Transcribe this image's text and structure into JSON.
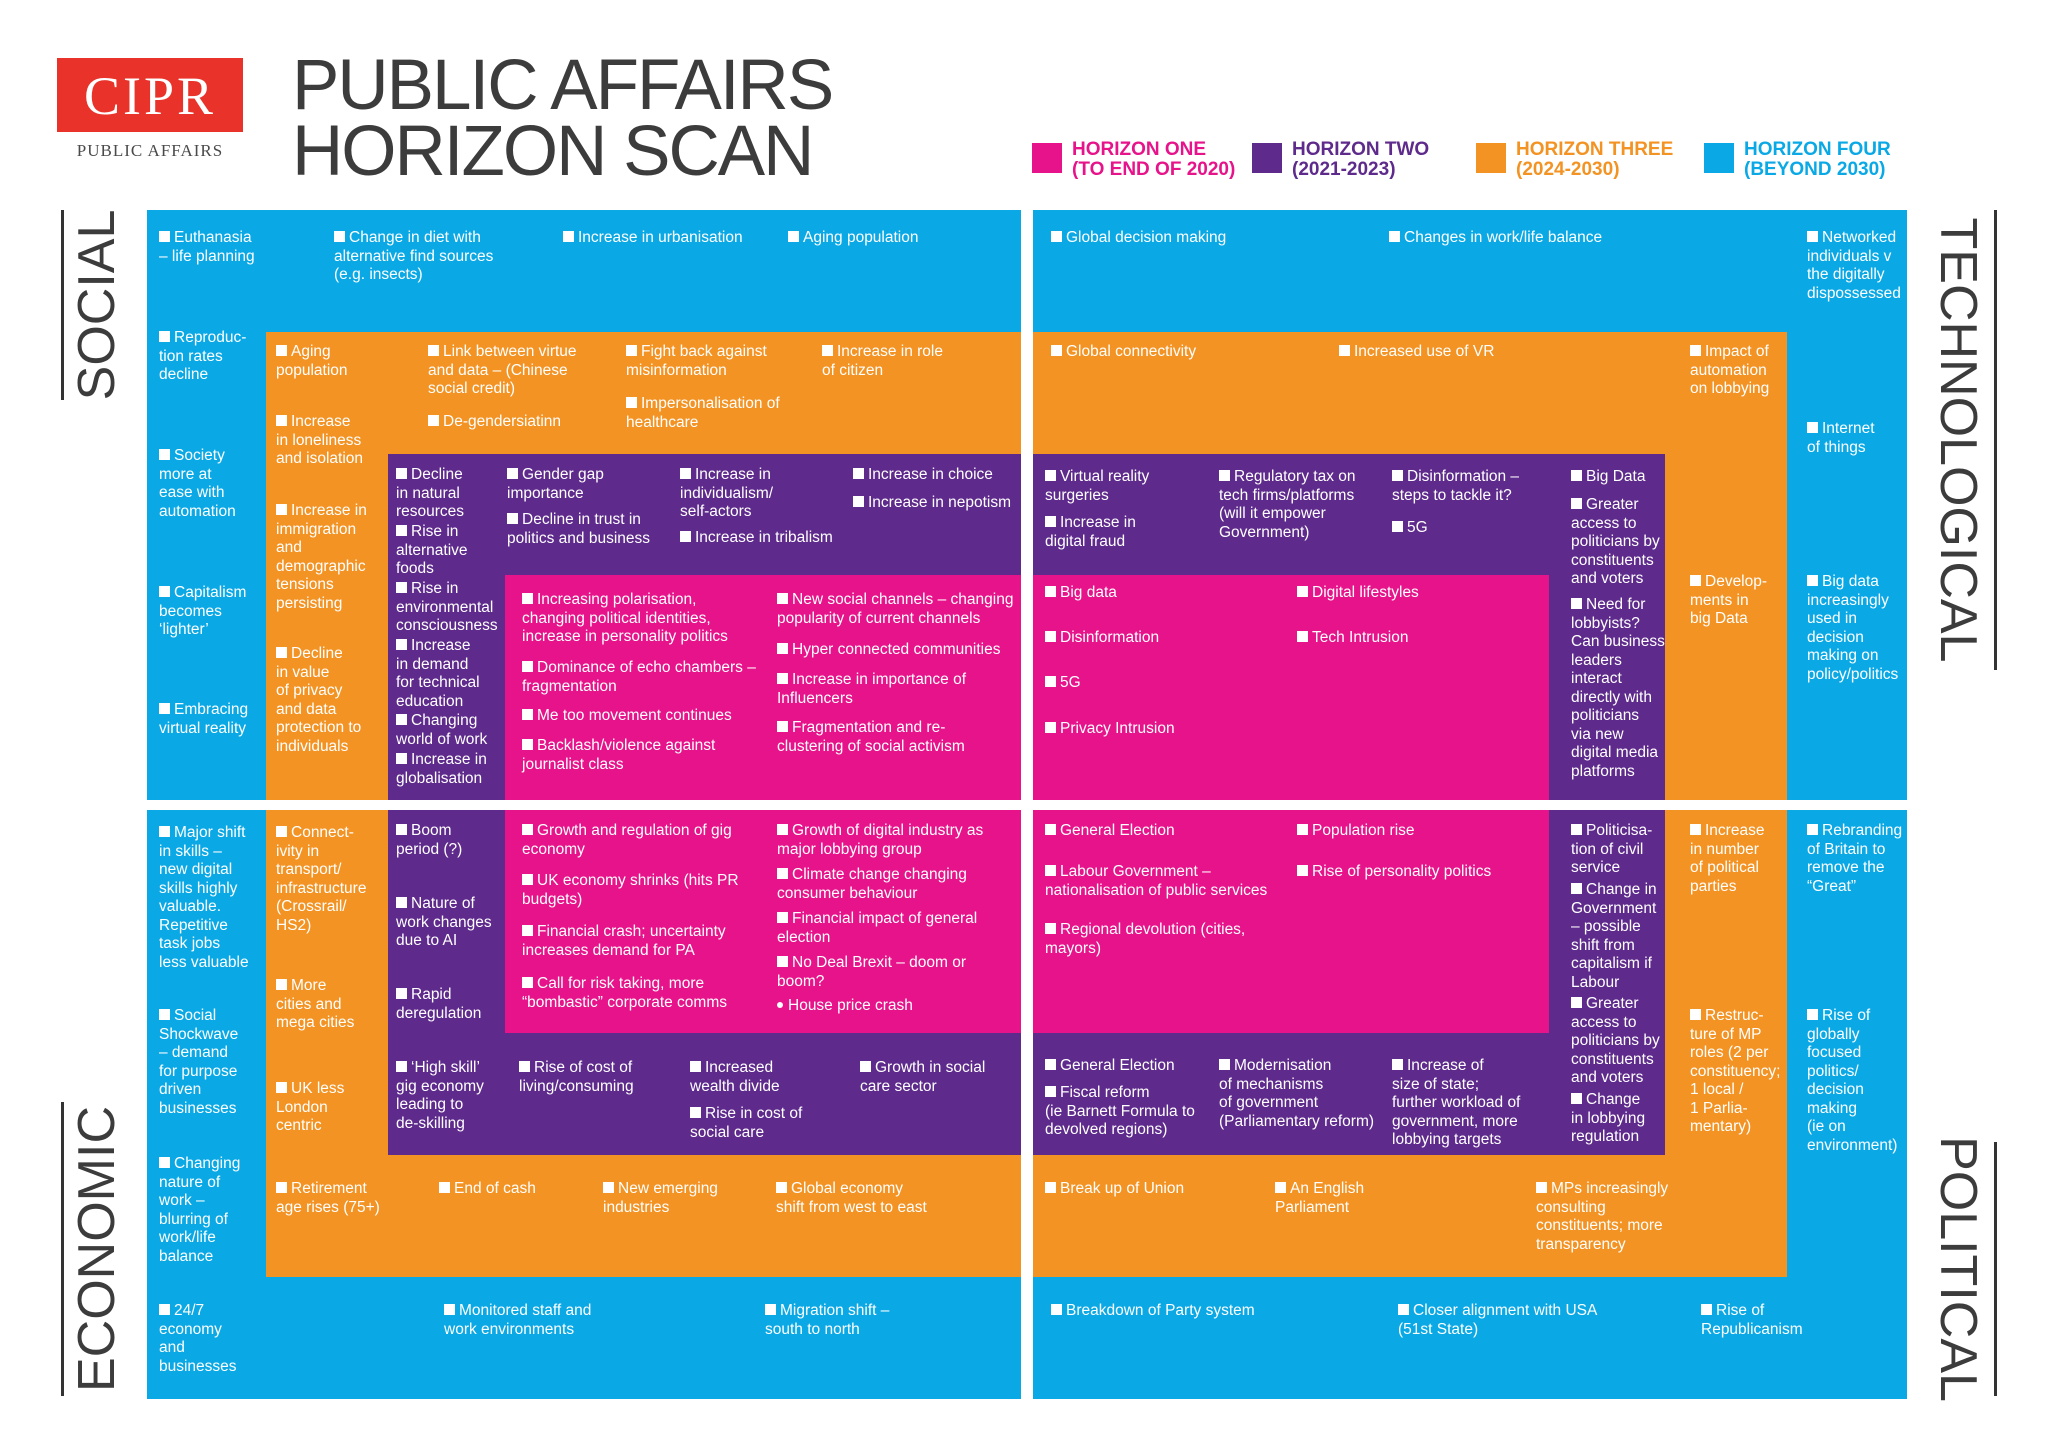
{
  "logo": {
    "name": "CIPR",
    "subtitle": "PUBLIC AFFAIRS"
  },
  "title": {
    "line1": "PUBLIC AFFAIRS",
    "line2": "HORIZON SCAN"
  },
  "legend": [
    {
      "label": "HORIZON ONE\n(TO END OF 2020)",
      "color": "#e6138a"
    },
    {
      "label": "HORIZON TWO\n(2021-2023)",
      "color": "#5e2a8b"
    },
    {
      "label": "HORIZON THREE\n(2024-2030)",
      "color": "#f39323"
    },
    {
      "label": "HORIZON FOUR\n(BEYOND 2030)",
      "color": "#0aa9e6"
    }
  ],
  "sides": {
    "social": "SOCIAL",
    "technological": "TECHNOLOGICAL",
    "economic": "ECONOMIC",
    "political": "POLITICAL"
  },
  "items": {
    "s4_1": "Euthanasia\n– life planning",
    "s4_2": "Change in diet with\nalternative find sources\n(e.g. insects)",
    "s4_3": "Increase in urbanisation",
    "s4_4": "Aging population",
    "s4_5": "Reproduc-\ntion rates\ndecline",
    "s4_6": "Society\nmore at\nease with\nautomation",
    "s4_7": "Capitalism\nbecomes\n‘lighter’",
    "s4_8": "Embracing\nvirtual reality",
    "s3_1": "Aging\npopulation",
    "s3_2": "Link between virtue\nand data – (Chinese\nsocial credit)",
    "s3_3": "Fight back against\nmisinformation",
    "s3_4": "Increase in role\nof citizen",
    "s3_5": "Increase\nin loneliness\nand isolation",
    "s3_6": "De-gendersiatinn",
    "s3_7": "Impersonalisation of\nhealthcare",
    "s3_8": "Increase in\nimmigration\nand\ndemographic\ntensions\npersisting",
    "s3_9": "Decline\nin value\nof privacy\nand data\nprotection to\nindividuals",
    "s2_1": "Decline\nin natural\nresources",
    "s2_2": "Rise in\nalternative\nfoods",
    "s2_3": "Rise in\nenvironmental\nconsciousness",
    "s2_4": "Increase\nin demand\nfor technical\neducation",
    "s2_5": "Changing\nworld of work",
    "s2_6": "Increase in\nglobalisation",
    "s2_7": "Gender gap\nimportance",
    "s2_8": "Decline in trust in\npolitics and business",
    "s2_9": "Increase in\nindividualism/\nself-actors",
    "s2_10": "Increase in tribalism",
    "s2_11": "Increase in choice",
    "s2_12": "Increase in nepotism",
    "s1_1": "Increasing polarisation,\nchanging political identities,\nincrease in personality politics",
    "s1_2": "Dominance of echo chambers –\nfragmentation",
    "s1_3": "Me too movement continues",
    "s1_4": "Backlash/violence against\njournalist class",
    "s1_5": "New social channels – changing\npopularity of current channels",
    "s1_6": "Hyper connected communities",
    "s1_7": "Increase in importance of\nInfluencers",
    "s1_8": "Fragmentation and re-\nclustering of social activism",
    "t4_1": "Global decision making",
    "t4_2": "Changes in work/life balance",
    "t4_3": "Networked\nindividuals v\nthe digitally\ndispossessed",
    "t4_4": "Internet\nof things",
    "t4_5": "Big data\nincreasingly\nused in\ndecision\nmaking on\npolicy/politics",
    "t3_1": "Global connectivity",
    "t3_2": "Increased use of VR",
    "t3_3": "Impact of\nautomation\non lobbying",
    "t3_4": "Develop-\nments in\nbig Data",
    "t2_1": "Virtual reality\nsurgeries",
    "t2_2": "Increase in\ndigital fraud",
    "t2_3": "Regulatory tax on\ntech firms/platforms\n(will it empower\nGovernment)",
    "t2_4": "Disinformation –\nsteps to tackle it?",
    "t2_5": "5G",
    "t2_6": "Big Data",
    "t2_7": "Greater\naccess to\npoliticians by\nconstituents\nand voters",
    "t2_8": "Need for\nlobbyists?\nCan business\nleaders\ninteract\ndirectly with\npoliticians\nvia new\ndigital media\nplatforms",
    "t1_1": "Big data",
    "t1_2": "Disinformation",
    "t1_3": "5G",
    "t1_4": "Privacy Intrusion",
    "t1_5": "Digital lifestyles",
    "t1_6": "Tech Intrusion",
    "e4_1": "Major shift\nin skills –\nnew digital\nskills highly\nvaluable.\nRepetitive\ntask jobs\nless valuable",
    "e4_2": "Social\nShockwave\n– demand\nfor purpose\ndriven\nbusinesses",
    "e4_3": "Changing\nnature of\nwork –\nblurring of\nwork/life\nbalance",
    "e4_4": "24/7\neconomy\nand\nbusinesses",
    "e4_5": "Monitored staff and\nwork environments",
    "e4_6": "Migration shift –\nsouth to north",
    "e3_1": "Connect-\nivity in\ntransport/\ninfrastructure\n(Crossrail/\nHS2)",
    "e3_2": "More\ncities and\nmega cities",
    "e3_3": "UK less\nLondon\ncentric",
    "e3_4": "Retirement\nage rises (75+)",
    "e3_5": "End of cash",
    "e3_6": "New emerging\nindustries",
    "e3_7": "Global economy\nshift from west to east",
    "e2_1": "Boom\nperiod (?)",
    "e2_2": "Nature of\nwork changes\ndue to AI",
    "e2_3": "Rapid\nderegulation",
    "e2_4": "‘High skill’\ngig economy\nleading to\nde-skilling",
    "e2_5": "Rise of cost of\nliving/consuming",
    "e2_6": "Increased\nwealth divide",
    "e2_7": "Rise in cost of\nsocial care",
    "e2_8": "Growth in social\ncare sector",
    "e1_1": "Growth and regulation of gig\neconomy",
    "e1_2": "UK economy shrinks (hits PR\nbudgets)",
    "e1_3": "Financial crash; uncertainty\nincreases demand for PA",
    "e1_4": "Call for risk taking, more\n“bombastic” corporate comms",
    "e1_5": "Growth of digital industry as\nmajor lobbying group",
    "e1_6": "Climate change changing\nconsumer behaviour",
    "e1_7": "Financial impact of general\nelection",
    "e1_8": "No Deal Brexit – doom or\nboom?",
    "e1_9": "House price crash",
    "p1_1": "General Election",
    "p1_2": "Labour Government –\nnationalisation of public services",
    "p1_3": "Regional devolution (cities,\nmayors)",
    "p1_4": "Population rise",
    "p1_5": "Rise of personality politics",
    "p2_1": "Politicisa-\ntion of civil\nservice",
    "p2_2": "Change in\nGovernment\n– possible\nshift from\ncapitalism if\nLabour",
    "p2_3": "Greater\naccess to\npoliticians by\nconstituents\nand voters",
    "p2_4": "Change\nin lobbying\nregulation",
    "p2_5": "General Election",
    "p2_6": "Fiscal reform\n(ie Barnett Formula to\ndevolved regions)",
    "p2_7": "Modernisation\nof mechanisms\nof government\n(Parliamentary reform)",
    "p2_8": "Increase of\nsize of state;\nfurther workload of\ngovernment, more\nlobbying targets",
    "p3_1": "Increase\nin number\nof political\nparties",
    "p3_2": "Restruc-\nture of MP\nroles (2 per\nconstituency;\n1 local /\n1 Parlia-\nmentary)",
    "p3_3": "Break up of Union",
    "p3_4": "An English\nParliament",
    "p3_5": "MPs increasingly\nconsulting\nconstituents; more\ntransparency",
    "p4_1": "Rebranding\nof Britain to\nremove the\n“Great”",
    "p4_2": "Rise of\nglobally\nfocused\npolitics/\ndecision\nmaking\n(ie on\nenvironment)",
    "p4_3": "Breakdown of Party system",
    "p4_4": "Closer alignment with USA\n(51st State)",
    "p4_5": "Rise of\nRepublicanism"
  }
}
